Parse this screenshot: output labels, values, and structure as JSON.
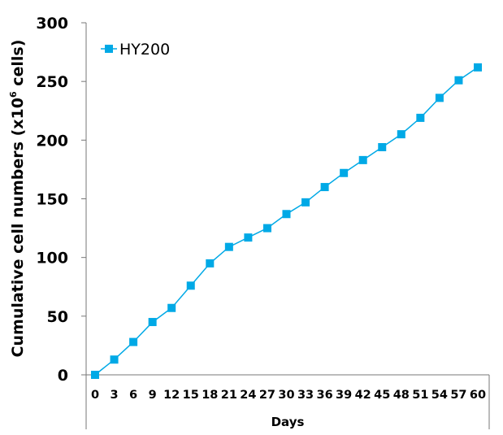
{
  "chart_data": {
    "type": "line",
    "xlabel": "Days",
    "ylabel": "Cumulative cell numbers (x10",
    "ylabel_sup": "6",
    "ylabel_suffix": " cells)",
    "ylim": [
      0,
      300
    ],
    "yticks": [
      "0",
      "50",
      "100",
      "150",
      "200",
      "250",
      "300"
    ],
    "categories": [
      "0",
      "3",
      "6",
      "9",
      "12",
      "15",
      "18",
      "21",
      "24",
      "27",
      "30",
      "33",
      "36",
      "39",
      "42",
      "45",
      "48",
      "51",
      "54",
      "57",
      "60"
    ],
    "series": [
      {
        "name": "HY200",
        "color": "#00a9e6",
        "marker": "square",
        "values": [
          0,
          13,
          28,
          45,
          57,
          76,
          95,
          109,
          117,
          125,
          137,
          147,
          160,
          172,
          183,
          194,
          205,
          219,
          236,
          251,
          262
        ]
      }
    ],
    "grid": false,
    "legend_position": "top-left"
  }
}
